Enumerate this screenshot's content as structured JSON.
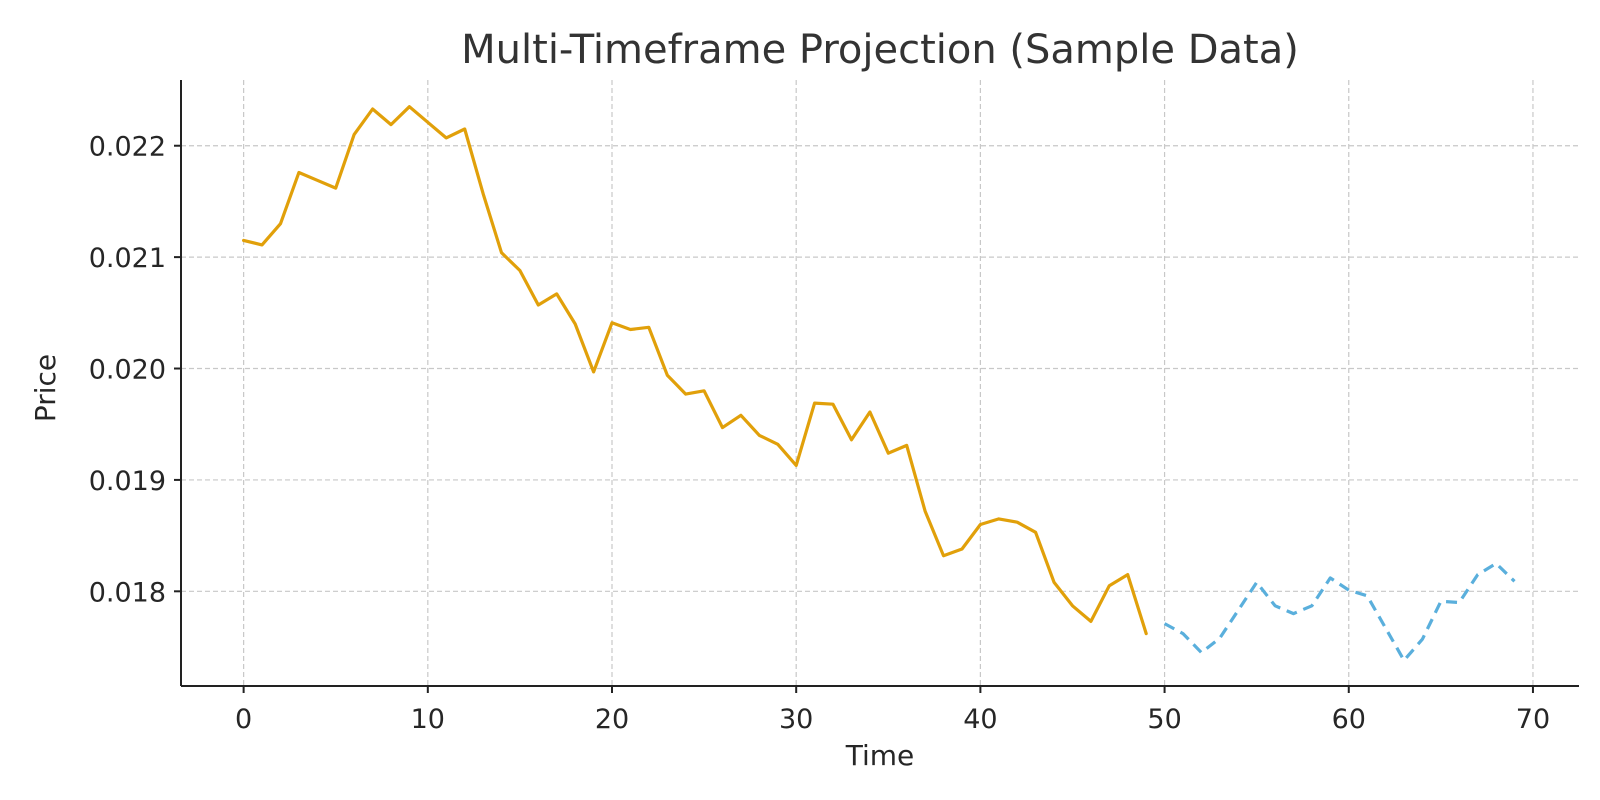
{
  "chart_data": {
    "type": "line",
    "title": "Multi-Timeframe Projection (Sample Data)",
    "xlabel": "Time",
    "ylabel": "Price",
    "xlim": [
      -3.4,
      72.5
    ],
    "ylim": [
      0.01715,
      0.02259
    ],
    "xticks": [
      0,
      10,
      20,
      30,
      40,
      50,
      60,
      70
    ],
    "xtick_labels": [
      "0",
      "10",
      "20",
      "30",
      "40",
      "50",
      "60",
      "70"
    ],
    "yticks": [
      0.018,
      0.019,
      0.02,
      0.021,
      0.022
    ],
    "ytick_labels": [
      "0.018",
      "0.019",
      "0.020",
      "0.021",
      "0.022"
    ],
    "grid": true,
    "legend": "none",
    "series": [
      {
        "color": "#e1a00a",
        "style": "solid",
        "x": [
          0,
          1,
          2,
          3,
          4,
          5,
          6,
          7,
          8,
          9,
          10,
          11,
          12,
          13,
          14,
          15,
          16,
          17,
          18,
          19,
          20,
          21,
          22,
          23,
          24,
          25,
          26,
          27,
          28,
          29,
          30,
          31,
          32,
          33,
          34,
          35,
          36,
          37,
          38,
          39,
          40,
          41,
          42,
          43,
          44,
          45,
          46,
          47,
          48,
          49
        ],
        "values": [
          0.02115,
          0.02111,
          0.0213,
          0.02176,
          0.02169,
          0.02162,
          0.0221,
          0.02233,
          0.02219,
          0.02235,
          0.02221,
          0.02207,
          0.02215,
          0.02157,
          0.02104,
          0.02088,
          0.02057,
          0.02067,
          0.0204,
          0.01997,
          0.02041,
          0.02035,
          0.02037,
          0.01994,
          0.01977,
          0.0198,
          0.01947,
          0.01958,
          0.0194,
          0.01932,
          0.01913,
          0.01969,
          0.01968,
          0.01936,
          0.01961,
          0.01924,
          0.01931,
          0.01872,
          0.01832,
          0.01838,
          0.0186,
          0.01865,
          0.01862,
          0.01853,
          0.01808,
          0.01787,
          0.01773,
          0.01805,
          0.01815,
          0.01762
        ]
      },
      {
        "color": "#5aafdc",
        "style": "dashed",
        "x": [
          50,
          51,
          52,
          53,
          54,
          55,
          56,
          57,
          58,
          59,
          60,
          61,
          62,
          63,
          64,
          65,
          66,
          67,
          68,
          69
        ],
        "values": [
          0.01771,
          0.01762,
          0.01745,
          0.01758,
          0.01783,
          0.01808,
          0.01787,
          0.0178,
          0.01787,
          0.01812,
          0.01801,
          0.01796,
          0.01767,
          0.01738,
          0.01757,
          0.01791,
          0.0179,
          0.01815,
          0.01825,
          0.01809
        ]
      }
    ]
  }
}
